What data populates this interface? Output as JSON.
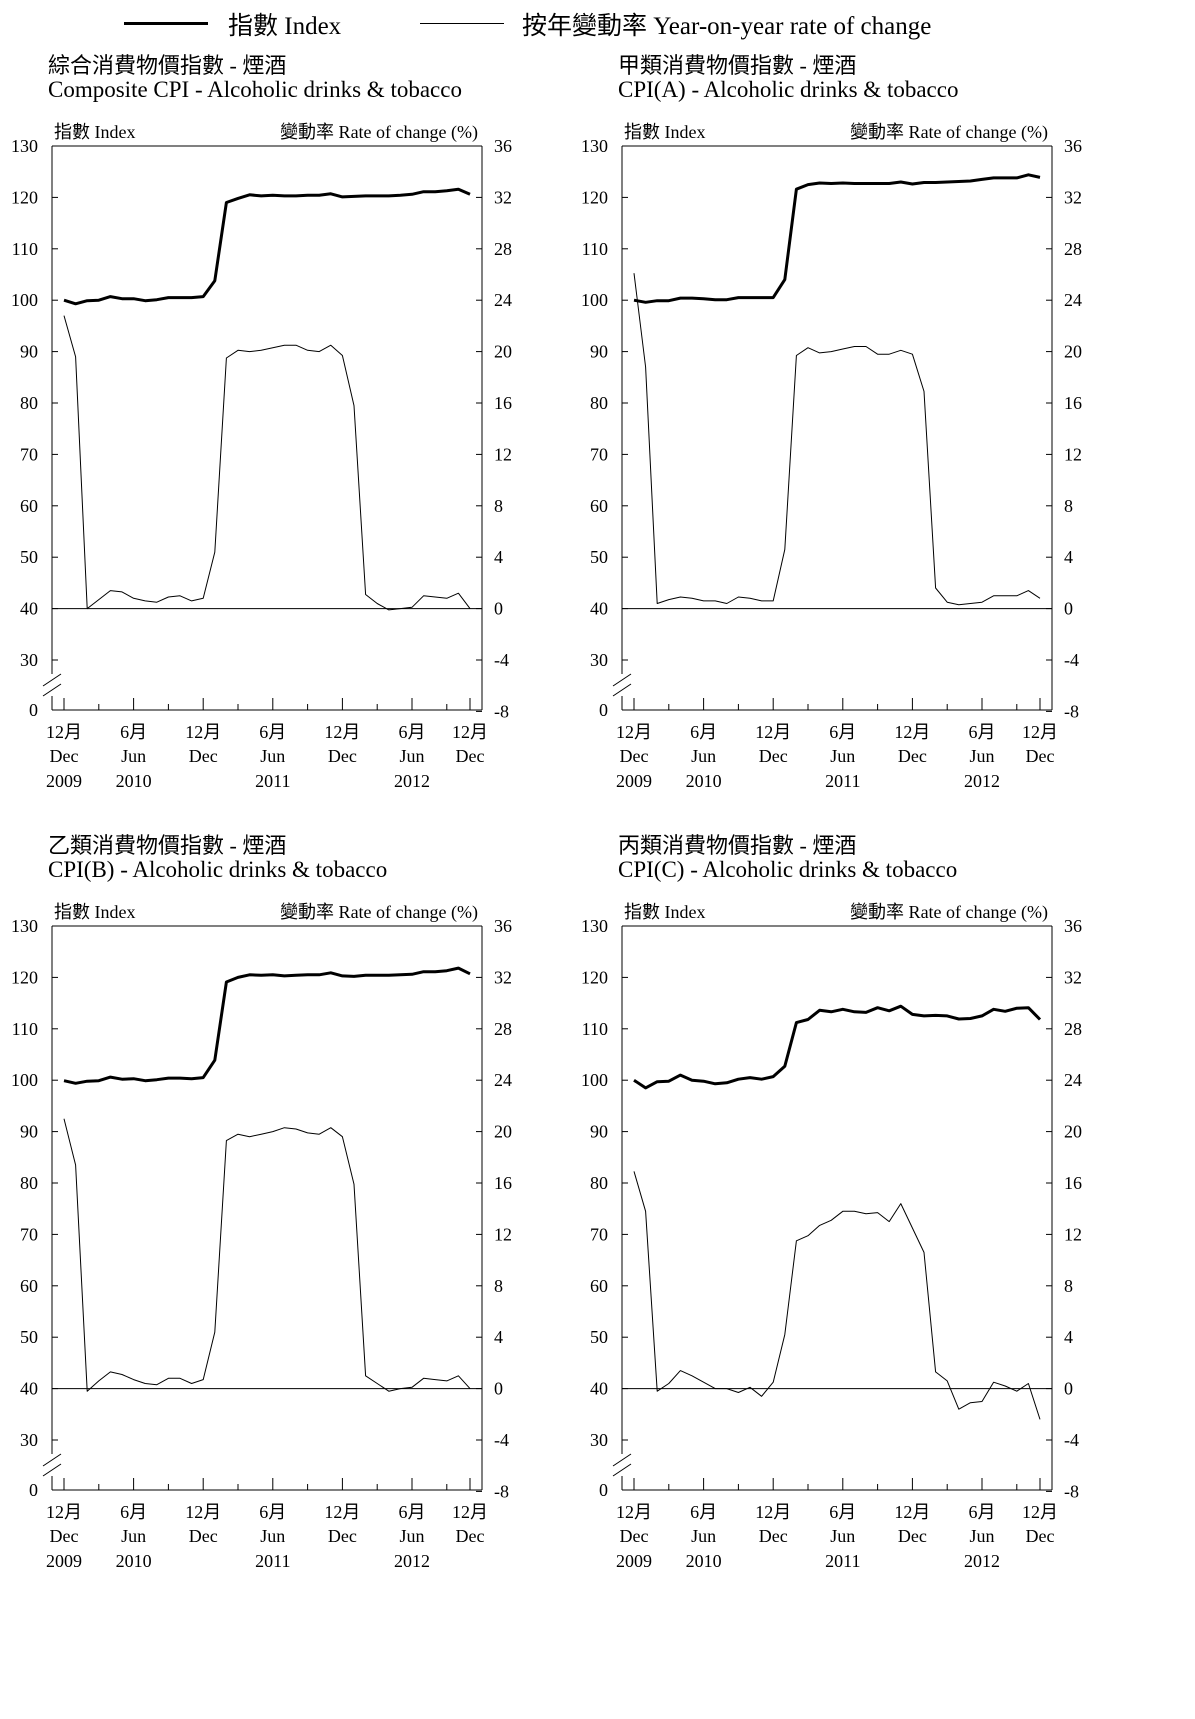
{
  "legend": {
    "index_label": "指數 Index",
    "rate_label": "按年變動率 Year-on-year rate of change"
  },
  "chart_data": [
    {
      "type": "line",
      "title_zh": "綜合消費物價指數  -  煙酒",
      "title_en": "Composite CPI - Alcoholic drinks & tobacco",
      "left_axis_label": "指數 Index",
      "right_axis_label": "變動率 Rate of change (%)",
      "left_ticks": [
        0,
        30,
        40,
        50,
        60,
        70,
        80,
        90,
        100,
        110,
        120,
        130
      ],
      "right_ticks": [
        -8,
        -4,
        0,
        4,
        8,
        12,
        16,
        20,
        24,
        28,
        32,
        36
      ],
      "x_labels": [
        {
          "month": "12月",
          "name": "Dec",
          "year": "2009"
        },
        {
          "month": "6月",
          "name": "Jun",
          "year": "2010"
        },
        {
          "month": "12月",
          "name": "Dec",
          "year": ""
        },
        {
          "month": "6月",
          "name": "Jun",
          "year": "2011"
        },
        {
          "month": "12月",
          "name": "Dec",
          "year": ""
        },
        {
          "month": "6月",
          "name": "Jun",
          "year": "2012"
        },
        {
          "month": "12月",
          "name": "Dec",
          "year": ""
        }
      ],
      "x_range": [
        "Dec 2009",
        "Dec 2012"
      ],
      "series": [
        {
          "name": "指數 Index",
          "axis": "left",
          "values": [
            100.0,
            99.3,
            99.9,
            100.0,
            100.7,
            100.3,
            100.3,
            99.9,
            100.1,
            100.5,
            100.5,
            100.5,
            100.7,
            103.8,
            119.0,
            119.8,
            120.5,
            120.3,
            120.4,
            120.3,
            120.3,
            120.4,
            120.4,
            120.7,
            120.1,
            120.2,
            120.3,
            120.3,
            120.3,
            120.4,
            120.6,
            121.1,
            121.1,
            121.3,
            121.6,
            120.6
          ]
        },
        {
          "name": "按年變動率 Year-on-year rate of change",
          "axis": "right",
          "values": [
            22.8,
            19.6,
            0.0,
            0.7,
            1.4,
            1.3,
            0.8,
            0.6,
            0.5,
            0.9,
            1.0,
            0.6,
            0.8,
            4.4,
            19.5,
            20.1,
            20.0,
            20.1,
            20.3,
            20.5,
            20.5,
            20.1,
            20.0,
            20.5,
            19.7,
            15.8,
            1.1,
            0.4,
            -0.1,
            0.0,
            0.1,
            1.0,
            0.9,
            0.8,
            1.2,
            0.0
          ]
        }
      ]
    },
    {
      "type": "line",
      "title_zh": "甲類消費物價指數  -  煙酒",
      "title_en": "CPI(A) - Alcoholic drinks & tobacco",
      "left_axis_label": "指數 Index",
      "right_axis_label": "變動率 Rate of change (%)",
      "left_ticks": [
        0,
        30,
        40,
        50,
        60,
        70,
        80,
        90,
        100,
        110,
        120,
        130
      ],
      "right_ticks": [
        -8,
        -4,
        0,
        4,
        8,
        12,
        16,
        20,
        24,
        28,
        32,
        36
      ],
      "x_labels": [
        {
          "month": "12月",
          "name": "Dec",
          "year": "2009"
        },
        {
          "month": "6月",
          "name": "Jun",
          "year": "2010"
        },
        {
          "month": "12月",
          "name": "Dec",
          "year": ""
        },
        {
          "month": "6月",
          "name": "Jun",
          "year": "2011"
        },
        {
          "month": "12月",
          "name": "Dec",
          "year": ""
        },
        {
          "month": "6月",
          "name": "Jun",
          "year": "2012"
        },
        {
          "month": "12月",
          "name": "Dec",
          "year": ""
        }
      ],
      "x_range": [
        "Dec 2009",
        "Dec 2012"
      ],
      "series": [
        {
          "name": "指數 Index",
          "axis": "left",
          "values": [
            100.0,
            99.6,
            99.9,
            99.9,
            100.4,
            100.4,
            100.3,
            100.1,
            100.1,
            100.5,
            100.5,
            100.5,
            100.5,
            104.0,
            121.6,
            122.5,
            122.8,
            122.7,
            122.8,
            122.7,
            122.7,
            122.7,
            122.7,
            123.0,
            122.6,
            122.9,
            122.9,
            123.0,
            123.1,
            123.2,
            123.5,
            123.8,
            123.8,
            123.8,
            124.4,
            123.9
          ]
        },
        {
          "name": "按年變動率 Year-on-year rate of change",
          "axis": "right",
          "values": [
            26.1,
            18.8,
            0.4,
            0.7,
            0.9,
            0.8,
            0.6,
            0.6,
            0.4,
            0.9,
            0.8,
            0.6,
            0.6,
            4.6,
            19.7,
            20.3,
            19.9,
            20.0,
            20.2,
            20.4,
            20.4,
            19.8,
            19.8,
            20.1,
            19.8,
            16.9,
            1.6,
            0.5,
            0.3,
            0.4,
            0.5,
            1.0,
            1.0,
            1.0,
            1.4,
            0.8
          ]
        }
      ]
    },
    {
      "type": "line",
      "title_zh": "乙類消費物價指數  -  煙酒",
      "title_en": "CPI(B) - Alcoholic drinks & tobacco",
      "left_axis_label": "指數 Index",
      "right_axis_label": "變動率 Rate of change (%)",
      "left_ticks": [
        0,
        30,
        40,
        50,
        60,
        70,
        80,
        90,
        100,
        110,
        120,
        130
      ],
      "right_ticks": [
        -8,
        -4,
        0,
        4,
        8,
        12,
        16,
        20,
        24,
        28,
        32,
        36
      ],
      "x_labels": [
        {
          "month": "12月",
          "name": "Dec",
          "year": "2009"
        },
        {
          "month": "6月",
          "name": "Jun",
          "year": "2010"
        },
        {
          "month": "12月",
          "name": "Dec",
          "year": ""
        },
        {
          "month": "6月",
          "name": "Jun",
          "year": "2011"
        },
        {
          "month": "12月",
          "name": "Dec",
          "year": ""
        },
        {
          "month": "6月",
          "name": "Jun",
          "year": "2012"
        },
        {
          "month": "12月",
          "name": "Dec",
          "year": ""
        }
      ],
      "x_range": [
        "Dec 2009",
        "Dec 2012"
      ],
      "series": [
        {
          "name": "指數 Index",
          "axis": "left",
          "values": [
            99.9,
            99.4,
            99.8,
            99.9,
            100.6,
            100.2,
            100.3,
            99.9,
            100.1,
            100.4,
            100.4,
            100.3,
            100.5,
            103.9,
            119.1,
            120.0,
            120.5,
            120.4,
            120.5,
            120.3,
            120.4,
            120.5,
            120.5,
            120.9,
            120.3,
            120.2,
            120.4,
            120.4,
            120.4,
            120.5,
            120.6,
            121.1,
            121.1,
            121.3,
            121.8,
            120.7
          ]
        },
        {
          "name": "按年變動率 Year-on-year rate of change",
          "axis": "right",
          "values": [
            21.0,
            17.4,
            -0.2,
            0.6,
            1.3,
            1.1,
            0.7,
            0.4,
            0.3,
            0.8,
            0.8,
            0.4,
            0.7,
            4.4,
            19.3,
            19.8,
            19.6,
            19.8,
            20.0,
            20.3,
            20.2,
            19.9,
            19.8,
            20.3,
            19.6,
            15.9,
            1.0,
            0.4,
            -0.2,
            0.0,
            0.1,
            0.8,
            0.7,
            0.6,
            1.0,
            0.0
          ]
        }
      ]
    },
    {
      "type": "line",
      "title_zh": "丙類消費物價指數  -  煙酒",
      "title_en": "CPI(C) - Alcoholic drinks & tobacco",
      "left_axis_label": "指數 Index",
      "right_axis_label": "變動率 Rate of change (%)",
      "left_ticks": [
        0,
        30,
        40,
        50,
        60,
        70,
        80,
        90,
        100,
        110,
        120,
        130
      ],
      "right_ticks": [
        -8,
        -4,
        0,
        4,
        8,
        12,
        16,
        20,
        24,
        28,
        32,
        36
      ],
      "x_labels": [
        {
          "month": "12月",
          "name": "Dec",
          "year": "2009"
        },
        {
          "month": "6月",
          "name": "Jun",
          "year": "2010"
        },
        {
          "month": "12月",
          "name": "Dec",
          "year": ""
        },
        {
          "month": "6月",
          "name": "Jun",
          "year": "2011"
        },
        {
          "month": "12月",
          "name": "Dec",
          "year": ""
        },
        {
          "month": "6月",
          "name": "Jun",
          "year": "2012"
        },
        {
          "month": "12月",
          "name": "Dec",
          "year": ""
        }
      ],
      "x_range": [
        "Dec 2009",
        "Dec 2012"
      ],
      "series": [
        {
          "name": "指數 Index",
          "axis": "left",
          "values": [
            100.0,
            98.5,
            99.7,
            99.8,
            101.0,
            100.0,
            99.8,
            99.3,
            99.5,
            100.2,
            100.5,
            100.2,
            100.7,
            102.7,
            111.2,
            111.8,
            113.6,
            113.3,
            113.8,
            113.3,
            113.2,
            114.1,
            113.5,
            114.4,
            112.8,
            112.5,
            112.6,
            112.5,
            111.9,
            112.0,
            112.5,
            113.8,
            113.4,
            114.0,
            114.1,
            111.8
          ]
        },
        {
          "name": "按年變動率 Year-on-year rate of change",
          "axis": "right",
          "values": [
            16.9,
            13.8,
            -0.2,
            0.4,
            1.4,
            1.0,
            0.5,
            0.0,
            0.0,
            -0.3,
            0.1,
            -0.6,
            0.5,
            4.2,
            11.5,
            11.9,
            12.7,
            13.1,
            13.8,
            13.8,
            13.6,
            13.7,
            13.0,
            14.4,
            12.5,
            10.6,
            1.3,
            0.6,
            -1.6,
            -1.1,
            -1.0,
            0.5,
            0.2,
            -0.2,
            0.4,
            -2.4
          ]
        }
      ]
    }
  ]
}
